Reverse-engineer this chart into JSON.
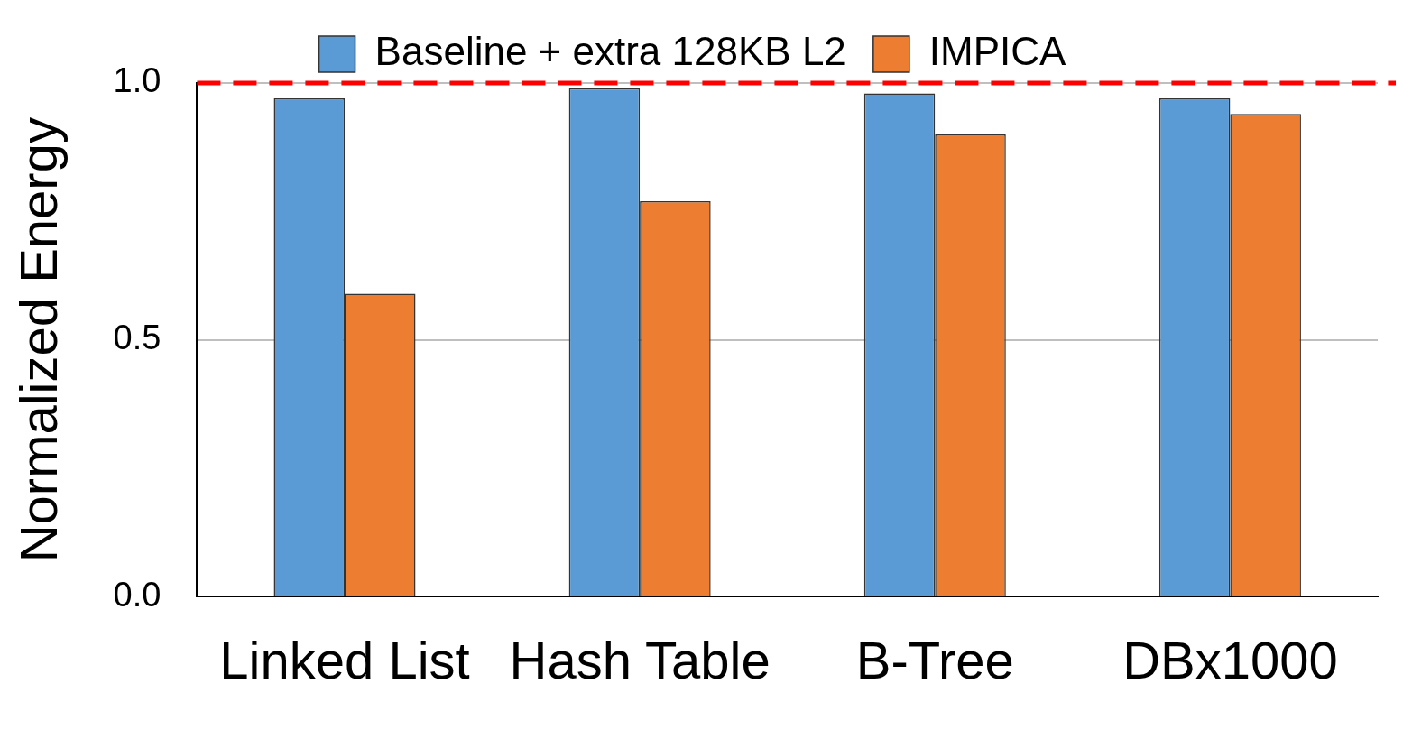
{
  "chart_data": {
    "type": "bar",
    "ylabel": "Normalized Energy",
    "categories": [
      "Linked List",
      "Hash Table",
      "B-Tree",
      "DBx1000"
    ],
    "series": [
      {
        "name": "Baseline + extra 128KB L2",
        "color": "#5b9bd5",
        "values": [
          0.97,
          0.99,
          0.98,
          0.97
        ]
      },
      {
        "name": "IMPICA",
        "color": "#ed7d31",
        "values": [
          0.59,
          0.77,
          0.9,
          0.94
        ]
      }
    ],
    "ylim": [
      0,
      1
    ],
    "yticks": [
      {
        "value": 0,
        "label": "0.0"
      },
      {
        "value": 0.5,
        "label": "0.5"
      },
      {
        "value": 1,
        "label": "1.0"
      }
    ],
    "grid": "y",
    "legend": "top",
    "ref_lines": [
      {
        "axis": "y",
        "value": 1,
        "color": "#ff0000",
        "line_style": "dashed"
      }
    ]
  }
}
